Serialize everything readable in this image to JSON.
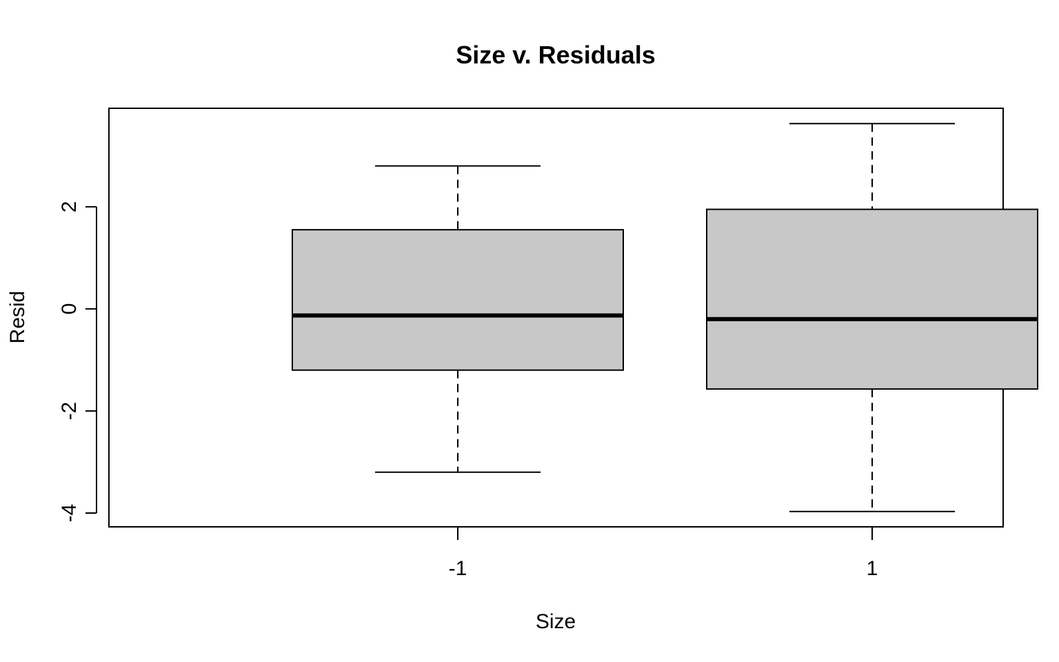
{
  "chart_data": {
    "type": "boxplot",
    "title": "Size v. Residuals",
    "xlabel": "Size",
    "ylabel": "Resid",
    "categories": [
      "-1",
      "1"
    ],
    "boxes": [
      {
        "category": "-1",
        "whisker_low": -3.2,
        "q1": -1.2,
        "median": -0.13,
        "q3": 1.55,
        "whisker_high": 2.8
      },
      {
        "category": "1",
        "whisker_low": -3.97,
        "q1": -1.57,
        "median": -0.2,
        "q3": 1.95,
        "whisker_high": 3.63
      }
    ],
    "yticks": [
      -4,
      -2,
      0,
      2
    ],
    "ytick_labels": [
      "-4",
      "-2",
      "0",
      "2"
    ],
    "ylim": [
      -4.27,
      3.93
    ],
    "box_fill": "#c8c8c8",
    "grid": false
  }
}
